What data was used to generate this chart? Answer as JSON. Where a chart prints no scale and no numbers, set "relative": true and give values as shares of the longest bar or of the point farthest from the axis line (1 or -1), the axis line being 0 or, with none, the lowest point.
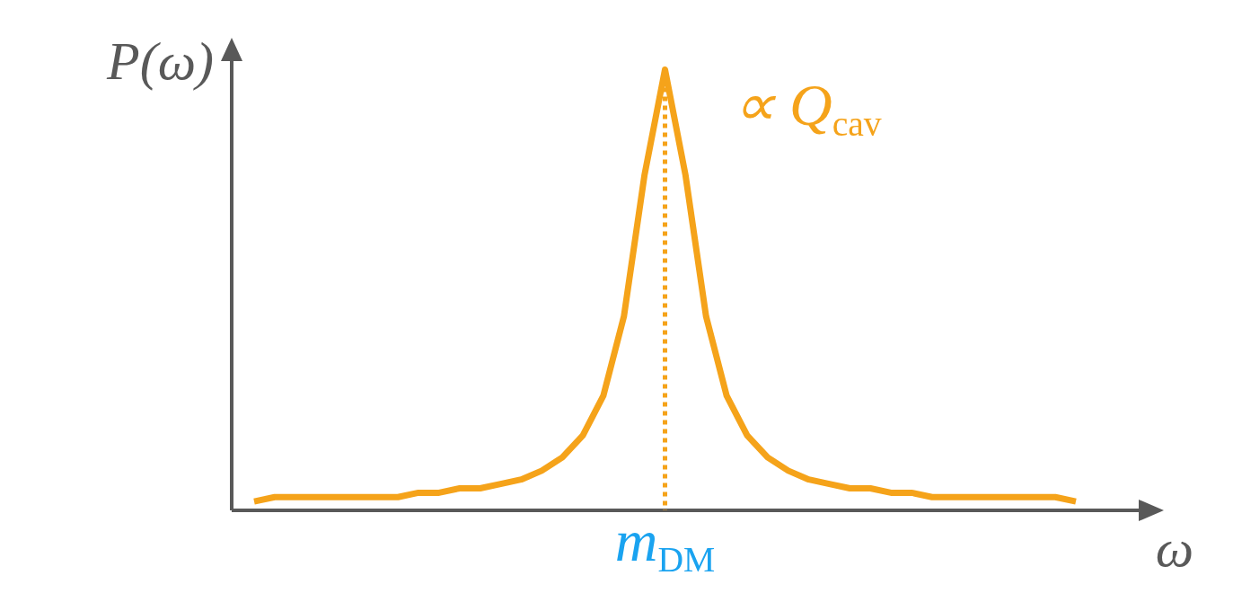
{
  "chart_data": {
    "type": "line",
    "relative": true,
    "xlabel": "ω",
    "ylabel": "P(ω)",
    "categories": [
      null,
      null,
      null,
      null,
      null,
      null,
      null,
      null,
      null,
      null,
      null,
      null,
      null,
      null,
      null,
      null,
      null,
      null,
      null,
      null,
      null,
      null,
      null,
      null,
      null,
      null,
      null,
      null,
      null,
      null,
      null,
      null,
      null,
      null,
      null,
      null,
      null,
      null,
      null,
      null,
      null
    ],
    "series": [
      {
        "color": "#f5a31a",
        "values": [
          0.02,
          0.03,
          0.03,
          0.03,
          0.03,
          0.03,
          0.03,
          0.03,
          0.04,
          0.04,
          0.05,
          0.05,
          0.06,
          0.07,
          0.09,
          0.12,
          0.17,
          0.26,
          0.44,
          0.76,
          1,
          0.76,
          0.44,
          0.26,
          0.17,
          0.12,
          0.09,
          0.07,
          0.06,
          0.05,
          0.05,
          0.04,
          0.04,
          0.03,
          0.03,
          0.03,
          0.03,
          0.03,
          0.03,
          0.03,
          0.02
        ]
      }
    ],
    "annotations": [
      "∝ Q$_{cav}$",
      "m$_{DM}$"
    ],
    "grid": false,
    "marker": "none",
    "line_style": "solid"
  }
}
